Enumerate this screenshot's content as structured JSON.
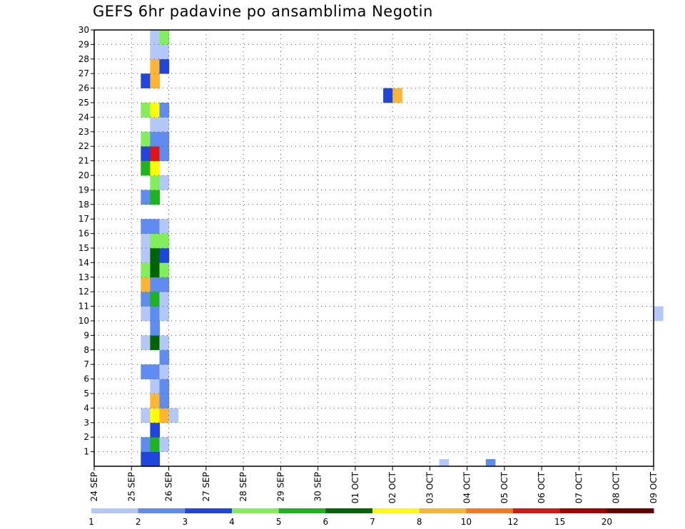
{
  "chart_data": {
    "type": "heatmap",
    "title": "GEFS 6hr padavine po ansamblima Negotin",
    "xlabel": "",
    "ylabel": "",
    "x_ticks": [
      "24 SEP",
      "25 SEP",
      "26 SEP",
      "27 SEP",
      "28 SEP",
      "29 SEP",
      "30 SEP",
      "01 OCT",
      "02 OCT",
      "03 OCT",
      "04 OCT",
      "05 OCT",
      "06 OCT",
      "07 OCT",
      "08 OCT",
      "09 OCT"
    ],
    "x_range": [
      "24 SEP 00Z",
      "09 OCT 00Z"
    ],
    "x_step_hours": 6,
    "y_ticks": [
      1,
      2,
      3,
      4,
      5,
      6,
      7,
      8,
      9,
      10,
      11,
      12,
      13,
      14,
      15,
      16,
      17,
      18,
      19,
      20,
      21,
      22,
      23,
      24,
      25,
      26,
      27,
      28,
      29,
      30
    ],
    "y_range": [
      0,
      30
    ],
    "grid": true,
    "colorbar": {
      "placement": "bottom",
      "labels": [
        "1",
        "2",
        "3",
        "4",
        "5",
        "6",
        "7",
        "8",
        "10",
        "12",
        "15",
        "20"
      ],
      "colors": [
        "#b4c8f8",
        "#5f8cf0",
        "#1e46dc",
        "#82ee5a",
        "#1eb41e",
        "#006400",
        "#ffff00",
        "#ffb432",
        "#ff781e",
        "#e11414",
        "#a00000",
        "#640000"
      ]
    },
    "cells": [
      {
        "member": 0,
        "step": 5,
        "value": 3.5
      },
      {
        "member": 0,
        "step": 6,
        "value": 3.5
      },
      {
        "member": 1,
        "step": 5,
        "value": 2.5
      },
      {
        "member": 1,
        "step": 6,
        "value": 5.5
      },
      {
        "member": 1,
        "step": 7,
        "value": 1.5
      },
      {
        "member": 2,
        "step": 6,
        "value": 3.5
      },
      {
        "member": 3,
        "step": 5,
        "value": 1.5
      },
      {
        "member": 3,
        "step": 6,
        "value": 7.5
      },
      {
        "member": 3,
        "step": 7,
        "value": 9
      },
      {
        "member": 3,
        "step": 8,
        "value": 1.5
      },
      {
        "member": 4,
        "step": 6,
        "value": 9
      },
      {
        "member": 4,
        "step": 7,
        "value": 2.5
      },
      {
        "member": 5,
        "step": 6,
        "value": 1.5
      },
      {
        "member": 5,
        "step": 7,
        "value": 2.5
      },
      {
        "member": 6,
        "step": 5,
        "value": 2.5
      },
      {
        "member": 6,
        "step": 6,
        "value": 2.5
      },
      {
        "member": 6,
        "step": 7,
        "value": 1.5
      },
      {
        "member": 7,
        "step": 7,
        "value": 2.5
      },
      {
        "member": 7,
        "step": 76,
        "value": 1.5
      },
      {
        "member": 7,
        "step": 77,
        "value": 1.5
      },
      {
        "member": 7,
        "step": 84,
        "value": 7.5
      },
      {
        "member": 8,
        "step": 5,
        "value": 1.5
      },
      {
        "member": 8,
        "step": 6,
        "value": 6.5
      },
      {
        "member": 8,
        "step": 7,
        "value": 1.5
      },
      {
        "member": 9,
        "step": 6,
        "value": 2.5
      },
      {
        "member": 10,
        "step": 5,
        "value": 1.5
      },
      {
        "member": 10,
        "step": 6,
        "value": 2.5
      },
      {
        "member": 10,
        "step": 7,
        "value": 1.5
      },
      {
        "member": 10,
        "step": 60,
        "value": 1.5
      },
      {
        "member": 11,
        "step": 5,
        "value": 2.5
      },
      {
        "member": 11,
        "step": 6,
        "value": 5.5
      },
      {
        "member": 11,
        "step": 7,
        "value": 1.5
      },
      {
        "member": 12,
        "step": 5,
        "value": 9
      },
      {
        "member": 12,
        "step": 6,
        "value": 2.5
      },
      {
        "member": 12,
        "step": 7,
        "value": 2.5
      },
      {
        "member": 13,
        "step": 5,
        "value": 4.5
      },
      {
        "member": 13,
        "step": 6,
        "value": 6.5
      },
      {
        "member": 13,
        "step": 7,
        "value": 4.5
      },
      {
        "member": 14,
        "step": 5,
        "value": 1.5
      },
      {
        "member": 14,
        "step": 6,
        "value": 6.5
      },
      {
        "member": 14,
        "step": 7,
        "value": 3.5
      },
      {
        "member": 15,
        "step": 5,
        "value": 1.5
      },
      {
        "member": 15,
        "step": 6,
        "value": 4.5
      },
      {
        "member": 15,
        "step": 7,
        "value": 4.5
      },
      {
        "member": 15,
        "step": 66,
        "value": 1.5
      },
      {
        "member": 16,
        "step": 5,
        "value": 2.5
      },
      {
        "member": 16,
        "step": 6,
        "value": 2.5
      },
      {
        "member": 16,
        "step": 7,
        "value": 1.5
      },
      {
        "member": 18,
        "step": 5,
        "value": 2.5
      },
      {
        "member": 18,
        "step": 6,
        "value": 5.5
      },
      {
        "member": 19,
        "step": 6,
        "value": 4.5
      },
      {
        "member": 19,
        "step": 7,
        "value": 1.5
      },
      {
        "member": 20,
        "step": 5,
        "value": 5.5
      },
      {
        "member": 20,
        "step": 6,
        "value": 7.5
      },
      {
        "member": 21,
        "step": 5,
        "value": 3.5
      },
      {
        "member": 21,
        "step": 6,
        "value": 13
      },
      {
        "member": 21,
        "step": 7,
        "value": 2.5
      },
      {
        "member": 22,
        "step": 5,
        "value": 4.5
      },
      {
        "member": 22,
        "step": 6,
        "value": 2.5
      },
      {
        "member": 22,
        "step": 7,
        "value": 2.5
      },
      {
        "member": 23,
        "step": 6,
        "value": 1.5
      },
      {
        "member": 23,
        "step": 7,
        "value": 1.5
      },
      {
        "member": 24,
        "step": 5,
        "value": 4.5
      },
      {
        "member": 24,
        "step": 6,
        "value": 7.5
      },
      {
        "member": 24,
        "step": 7,
        "value": 2.5
      },
      {
        "member": 25,
        "step": 31,
        "value": 3.5
      },
      {
        "member": 25,
        "step": 32,
        "value": 9
      },
      {
        "member": 26,
        "step": 5,
        "value": 3.5
      },
      {
        "member": 26,
        "step": 6,
        "value": 9
      },
      {
        "member": 27,
        "step": 6,
        "value": 9
      },
      {
        "member": 27,
        "step": 7,
        "value": 3.5
      },
      {
        "member": 27,
        "step": 84,
        "value": 5.5
      },
      {
        "member": 28,
        "step": 6,
        "value": 1.5
      },
      {
        "member": 28,
        "step": 7,
        "value": 1.5
      },
      {
        "member": 29,
        "step": 6,
        "value": 1.5
      },
      {
        "member": 29,
        "step": 7,
        "value": 4.5
      },
      {
        "member": -1,
        "step": 37,
        "value": 1.5
      },
      {
        "member": -1,
        "step": 42,
        "value": 2.5
      }
    ]
  }
}
